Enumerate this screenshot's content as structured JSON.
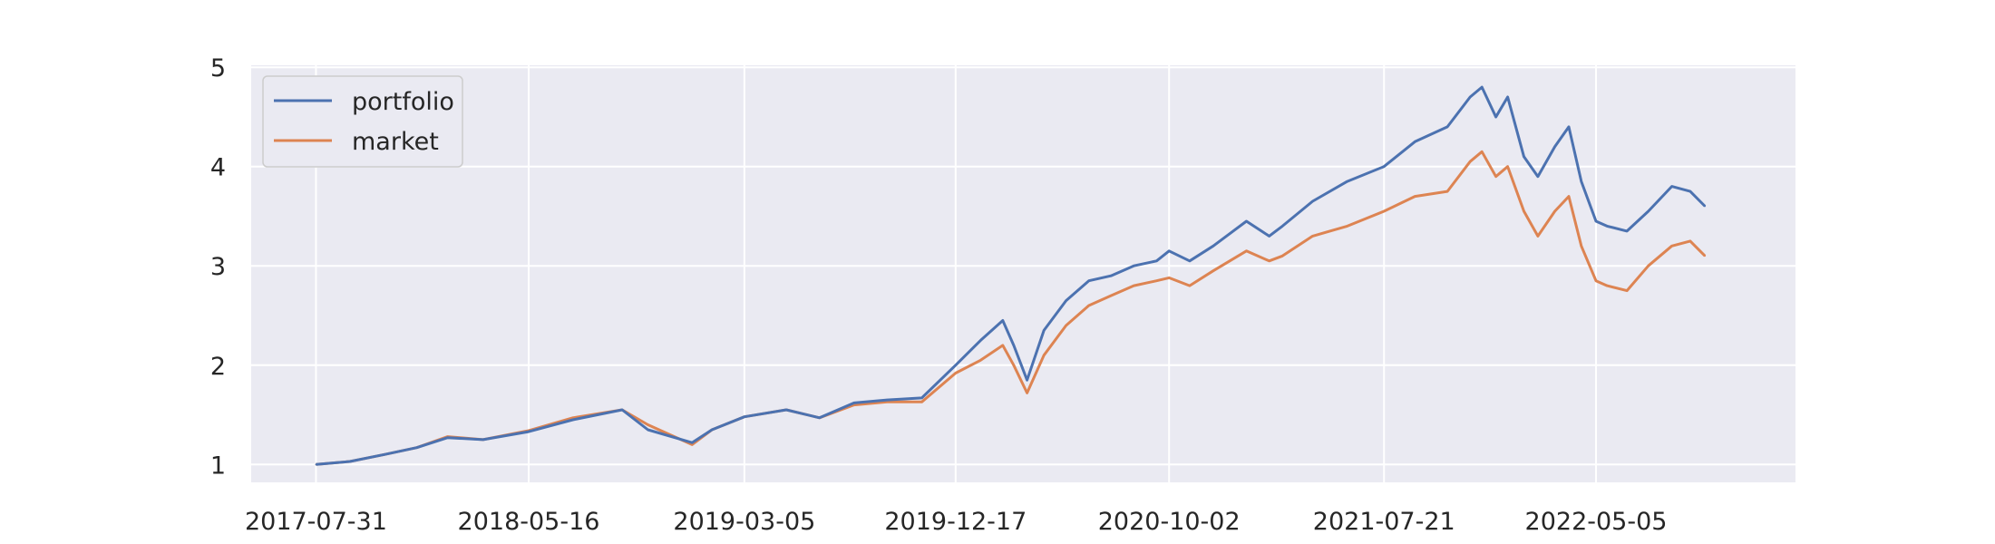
{
  "chart_data": {
    "type": "line",
    "title": "",
    "xlabel": "",
    "ylabel": "",
    "xlim": [
      "2017-05-04",
      "2023-01-31"
    ],
    "ylim": [
      0.82,
      5.02
    ],
    "grid": true,
    "legend_position": "upper-left",
    "x_ticks": [
      "2017-07-31",
      "2018-05-16",
      "2019-03-05",
      "2019-12-17",
      "2020-10-02",
      "2021-07-21",
      "2022-05-05"
    ],
    "y_ticks": [
      1,
      2,
      3,
      4,
      5
    ],
    "colors": {
      "background": "#EAEAF2",
      "grid": "#FFFFFF",
      "portfolio": "#4C72B0",
      "market": "#DD8452"
    },
    "series": [
      {
        "name": "portfolio",
        "x": [
          "2017-07-31",
          "2017-09-15",
          "2017-11-01",
          "2017-12-15",
          "2018-01-26",
          "2018-03-15",
          "2018-05-16",
          "2018-07-15",
          "2018-09-20",
          "2018-10-25",
          "2018-12-24",
          "2019-01-20",
          "2019-03-05",
          "2019-05-01",
          "2019-06-15",
          "2019-08-01",
          "2019-09-15",
          "2019-11-01",
          "2019-12-17",
          "2020-01-20",
          "2020-02-19",
          "2020-03-05",
          "2020-03-23",
          "2020-04-15",
          "2020-05-15",
          "2020-06-15",
          "2020-07-15",
          "2020-08-15",
          "2020-09-15",
          "2020-10-02",
          "2020-10-30",
          "2020-12-01",
          "2021-01-15",
          "2021-02-15",
          "2021-03-05",
          "2021-04-15",
          "2021-06-01",
          "2021-07-21",
          "2021-09-01",
          "2021-10-15",
          "2021-11-15",
          "2021-12-01",
          "2021-12-20",
          "2022-01-05",
          "2022-01-27",
          "2022-02-15",
          "2022-03-10",
          "2022-03-29",
          "2022-04-15",
          "2022-05-05",
          "2022-05-20",
          "2022-06-16",
          "2022-07-15",
          "2022-08-16",
          "2022-09-10",
          "2022-09-30"
        ],
        "y": [
          1.0,
          1.03,
          1.1,
          1.17,
          1.27,
          1.25,
          1.33,
          1.45,
          1.55,
          1.35,
          1.22,
          1.35,
          1.48,
          1.55,
          1.47,
          1.62,
          1.65,
          1.67,
          2.0,
          2.25,
          2.45,
          2.2,
          1.85,
          2.35,
          2.65,
          2.85,
          2.9,
          3.0,
          3.05,
          3.15,
          3.05,
          3.2,
          3.45,
          3.3,
          3.4,
          3.65,
          3.85,
          4.0,
          4.25,
          4.4,
          4.7,
          4.8,
          4.5,
          4.7,
          4.1,
          3.9,
          4.2,
          4.4,
          3.85,
          3.45,
          3.4,
          3.35,
          3.55,
          3.8,
          3.75,
          3.6
        ]
      },
      {
        "name": "market",
        "x": [
          "2017-07-31",
          "2017-09-15",
          "2017-11-01",
          "2017-12-15",
          "2018-01-26",
          "2018-03-15",
          "2018-05-16",
          "2018-07-15",
          "2018-09-20",
          "2018-10-25",
          "2018-12-24",
          "2019-01-20",
          "2019-03-05",
          "2019-05-01",
          "2019-06-15",
          "2019-08-01",
          "2019-09-15",
          "2019-11-01",
          "2019-12-17",
          "2020-01-20",
          "2020-02-19",
          "2020-03-05",
          "2020-03-23",
          "2020-04-15",
          "2020-05-15",
          "2020-06-15",
          "2020-07-15",
          "2020-08-15",
          "2020-09-15",
          "2020-10-02",
          "2020-10-30",
          "2020-12-01",
          "2021-01-15",
          "2021-02-15",
          "2021-03-05",
          "2021-04-15",
          "2021-06-01",
          "2021-07-21",
          "2021-09-01",
          "2021-10-15",
          "2021-11-15",
          "2021-12-01",
          "2021-12-20",
          "2022-01-05",
          "2022-01-27",
          "2022-02-15",
          "2022-03-10",
          "2022-03-29",
          "2022-04-15",
          "2022-05-05",
          "2022-05-20",
          "2022-06-16",
          "2022-07-15",
          "2022-08-16",
          "2022-09-10",
          "2022-09-30"
        ],
        "y": [
          1.0,
          1.03,
          1.1,
          1.17,
          1.28,
          1.25,
          1.34,
          1.47,
          1.55,
          1.4,
          1.2,
          1.35,
          1.48,
          1.55,
          1.47,
          1.6,
          1.63,
          1.63,
          1.92,
          2.05,
          2.2,
          2.0,
          1.72,
          2.1,
          2.4,
          2.6,
          2.7,
          2.8,
          2.85,
          2.88,
          2.8,
          2.95,
          3.15,
          3.05,
          3.1,
          3.3,
          3.4,
          3.55,
          3.7,
          3.75,
          4.05,
          4.15,
          3.9,
          4.0,
          3.55,
          3.3,
          3.55,
          3.7,
          3.2,
          2.85,
          2.8,
          2.75,
          3.0,
          3.2,
          3.25,
          3.1
        ]
      }
    ]
  }
}
